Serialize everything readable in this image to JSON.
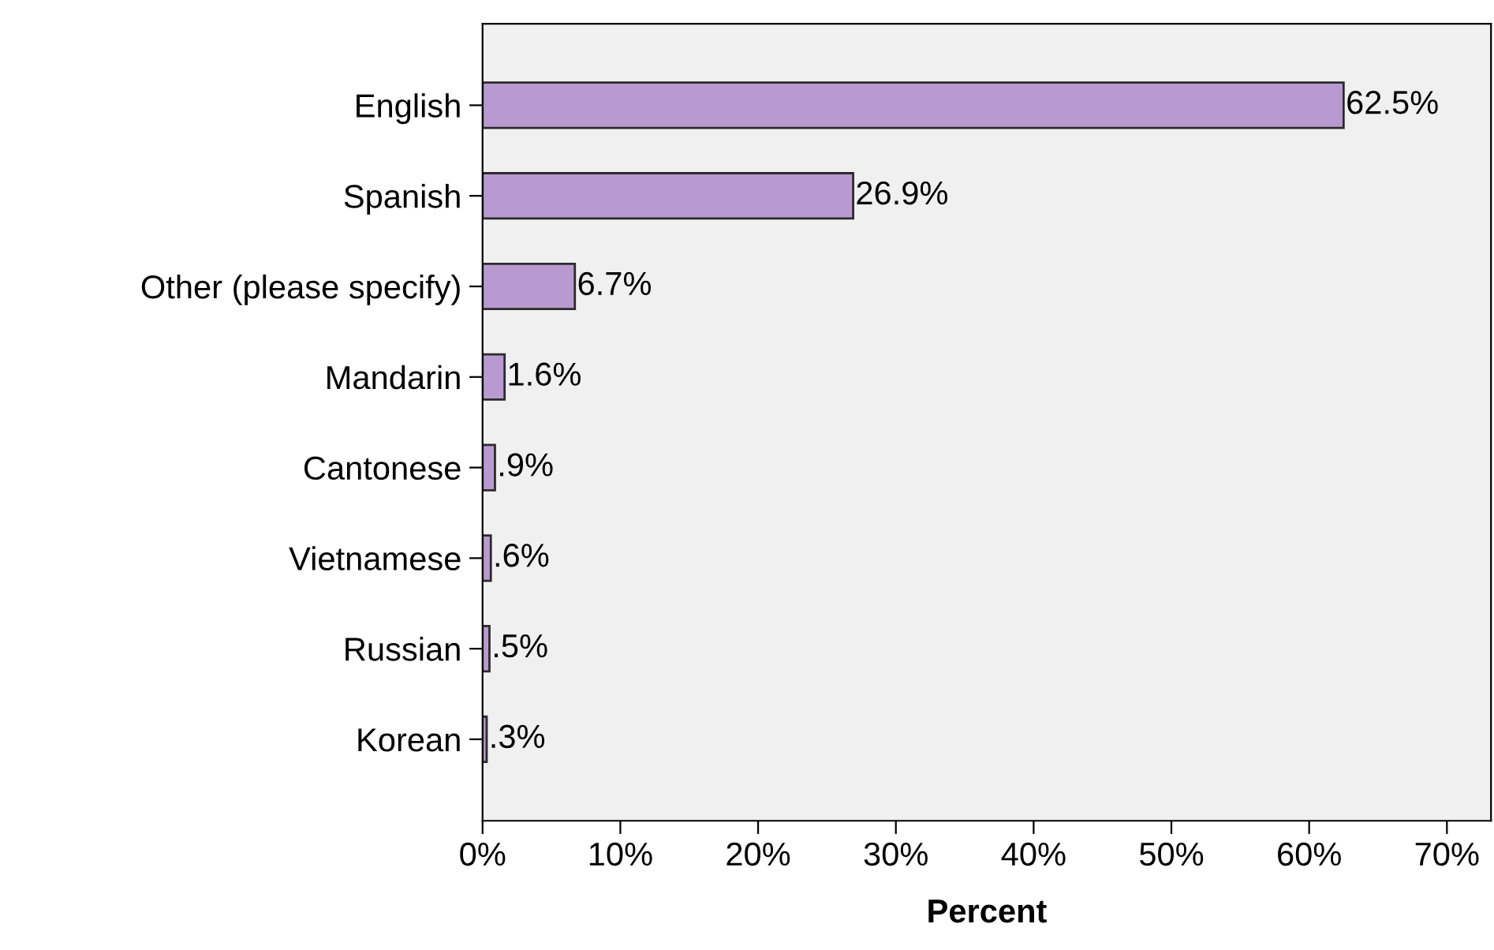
{
  "chart_data": {
    "type": "bar",
    "orientation": "horizontal",
    "xlabel": "Percent",
    "categories": [
      "English",
      "Spanish",
      "Other (please specify)",
      "Mandarin",
      "Cantonese",
      "Vietnamese",
      "Russian",
      "Korean"
    ],
    "values": [
      62.5,
      26.9,
      6.7,
      1.6,
      0.9,
      0.6,
      0.5,
      0.3
    ],
    "value_labels": [
      "62.5%",
      "26.9%",
      "6.7%",
      "1.6%",
      ".9%",
      ".6%",
      ".5%",
      ".3%"
    ],
    "color": "#b99ad0",
    "xlim": [
      0,
      73.2
    ],
    "xticks": [
      {
        "value": 0,
        "label": "0%"
      },
      {
        "value": 10,
        "label": "10%"
      },
      {
        "value": 20,
        "label": "20%"
      },
      {
        "value": 30,
        "label": "30%"
      },
      {
        "value": 40,
        "label": "40%"
      },
      {
        "value": 50,
        "label": "50%"
      },
      {
        "value": 60,
        "label": "60%"
      },
      {
        "value": 70,
        "label": "70%"
      }
    ],
    "grid": false,
    "legend": false
  }
}
